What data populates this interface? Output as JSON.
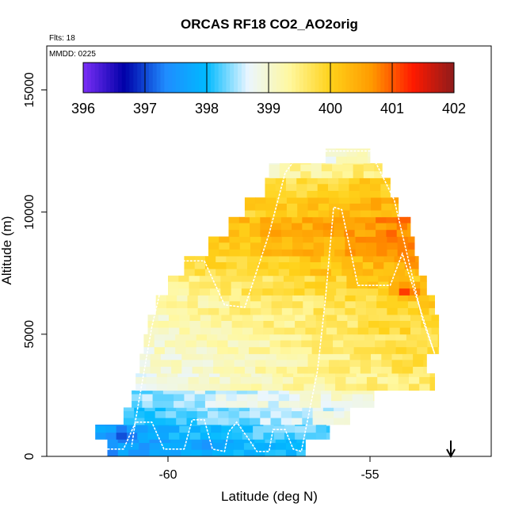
{
  "chart_data": {
    "type": "heatmap",
    "title": "ORCAS RF18 CO2_AO2orig",
    "xlabel": "Latitude (deg N)",
    "ylabel": "Altitude (m)",
    "xlim": [
      -63.0,
      -52.0
    ],
    "ylim": [
      0,
      16800
    ],
    "x_ticks": [
      -60,
      -55
    ],
    "x_tick_labels": [
      "-60",
      "-55"
    ],
    "y_ticks": [
      0,
      5000,
      10000,
      15000
    ],
    "y_tick_labels": [
      "0",
      "5000",
      "10000",
      "15000"
    ],
    "annotations": {
      "flights": "Flts: 18",
      "date": "MMDD: 0225"
    },
    "colorbar": {
      "min": 396,
      "max": 402,
      "ticks": [
        396,
        397,
        398,
        399,
        400,
        401,
        402
      ],
      "tick_labels": [
        "396",
        "397",
        "398",
        "399",
        "400",
        "401",
        "402"
      ],
      "colors": [
        "#7b2ff7",
        "#0000a8",
        "#1f8cff",
        "#00baff",
        "#eaf6ff",
        "#fff8a0",
        "#ffd21a",
        "#ff9a00",
        "#ff1a00",
        "#8e1b1b"
      ]
    },
    "end_marker": {
      "symbol": "arrow-down",
      "latitude": -53.0
    },
    "profile_bands": [
      {
        "alt_min": 0,
        "alt_max": 700,
        "lat_min": -61.5,
        "lat_max": -56.6,
        "co2": 397.8
      },
      {
        "alt_min": 700,
        "alt_max": 1300,
        "lat_min": -61.8,
        "lat_max": -56.0,
        "co2": 398.0
      },
      {
        "alt_min": 1300,
        "alt_max": 2000,
        "lat_min": -61.1,
        "lat_max": -55.5,
        "co2": 398.4
      },
      {
        "alt_min": 2000,
        "alt_max": 2700,
        "lat_min": -60.9,
        "lat_max": -54.9,
        "co2": 398.7
      },
      {
        "alt_min": 2700,
        "alt_max": 3400,
        "lat_min": -60.8,
        "lat_max": -53.4,
        "co2": 399.2
      },
      {
        "alt_min": 3400,
        "alt_max": 4200,
        "lat_min": -60.7,
        "lat_max": -53.6,
        "co2": 399.3
      },
      {
        "alt_min": 4200,
        "alt_max": 5000,
        "lat_min": -60.6,
        "lat_max": -53.3,
        "co2": 399.4
      },
      {
        "alt_min": 5000,
        "alt_max": 5800,
        "lat_min": -60.5,
        "lat_max": -53.3,
        "co2": 399.5
      },
      {
        "alt_min": 5800,
        "alt_max": 6600,
        "lat_min": -60.3,
        "lat_max": -53.4,
        "co2": 399.6
      },
      {
        "alt_min": 6600,
        "alt_max": 7400,
        "lat_min": -60.0,
        "lat_max": -53.6,
        "co2": 399.8
      },
      {
        "alt_min": 7400,
        "alt_max": 8200,
        "lat_min": -59.6,
        "lat_max": -53.8,
        "co2": 400.1
      },
      {
        "alt_min": 8200,
        "alt_max": 9000,
        "lat_min": -59.0,
        "lat_max": -53.9,
        "co2": 400.4
      },
      {
        "alt_min": 9000,
        "alt_max": 9800,
        "lat_min": -58.5,
        "lat_max": -54.0,
        "co2": 400.5
      },
      {
        "alt_min": 9800,
        "alt_max": 10600,
        "lat_min": -58.1,
        "lat_max": -54.3,
        "co2": 400.2
      },
      {
        "alt_min": 10600,
        "alt_max": 11400,
        "lat_min": -57.6,
        "lat_max": -54.5,
        "co2": 399.9
      },
      {
        "alt_min": 11400,
        "alt_max": 12000,
        "lat_min": -57.5,
        "lat_max": -54.7,
        "co2": 399.4
      },
      {
        "alt_min": 12000,
        "alt_max": 12600,
        "lat_min": -56.1,
        "lat_max": -55.0,
        "co2": 399.0
      }
    ],
    "highlights": [
      {
        "latitude": -54.1,
        "altitude": 6750,
        "co2": 401.3
      },
      {
        "latitude": -57.4,
        "altitude": 9100,
        "co2": 400.7
      },
      {
        "latitude": -55.1,
        "altitude": 8500,
        "co2": 400.6
      },
      {
        "latitude": -53.9,
        "altitude": 8000,
        "co2": 400.9
      },
      {
        "latitude": -61.1,
        "altitude": 900,
        "co2": 396.9
      },
      {
        "latitude": -59.0,
        "altitude": 500,
        "co2": 397.3
      },
      {
        "latitude": -57.6,
        "altitude": 12000,
        "co2": 398.3
      }
    ],
    "flight_track": [
      [
        -61.5,
        300
      ],
      [
        -61.1,
        300
      ],
      [
        -60.8,
        1400
      ],
      [
        -60.4,
        1400
      ],
      [
        -60.1,
        300
      ],
      [
        -59.6,
        300
      ],
      [
        -59.4,
        1500
      ],
      [
        -59.1,
        1500
      ],
      [
        -58.9,
        300
      ],
      [
        -58.6,
        200
      ],
      [
        -58.5,
        1000
      ],
      [
        -58.3,
        1400
      ],
      [
        -58.0,
        700
      ],
      [
        -57.8,
        200
      ],
      [
        -57.5,
        200
      ],
      [
        -57.4,
        1100
      ],
      [
        -57.1,
        1100
      ],
      [
        -56.9,
        300
      ],
      [
        -56.7,
        200
      ],
      [
        -56.3,
        3500
      ],
      [
        -56.1,
        6500
      ],
      [
        -55.9,
        10200
      ],
      [
        -55.7,
        10100
      ],
      [
        -55.3,
        7000
      ],
      [
        -54.5,
        7000
      ],
      [
        -54.2,
        8300
      ],
      [
        -53.4,
        4200
      ],
      [
        -53.7,
        5600
      ],
      [
        -54.4,
        10500
      ],
      [
        -54.7,
        11500
      ],
      [
        -55.0,
        12500
      ],
      [
        -56.7,
        12500
      ],
      [
        -57.1,
        11600
      ],
      [
        -57.5,
        9100
      ],
      [
        -58.1,
        6100
      ],
      [
        -58.6,
        6200
      ],
      [
        -59.1,
        8000
      ],
      [
        -59.9,
        8000
      ],
      [
        -60.2,
        6700
      ],
      [
        -60.4,
        5300
      ],
      [
        -60.8,
        1500
      ],
      [
        -60.9,
        400
      ]
    ]
  }
}
